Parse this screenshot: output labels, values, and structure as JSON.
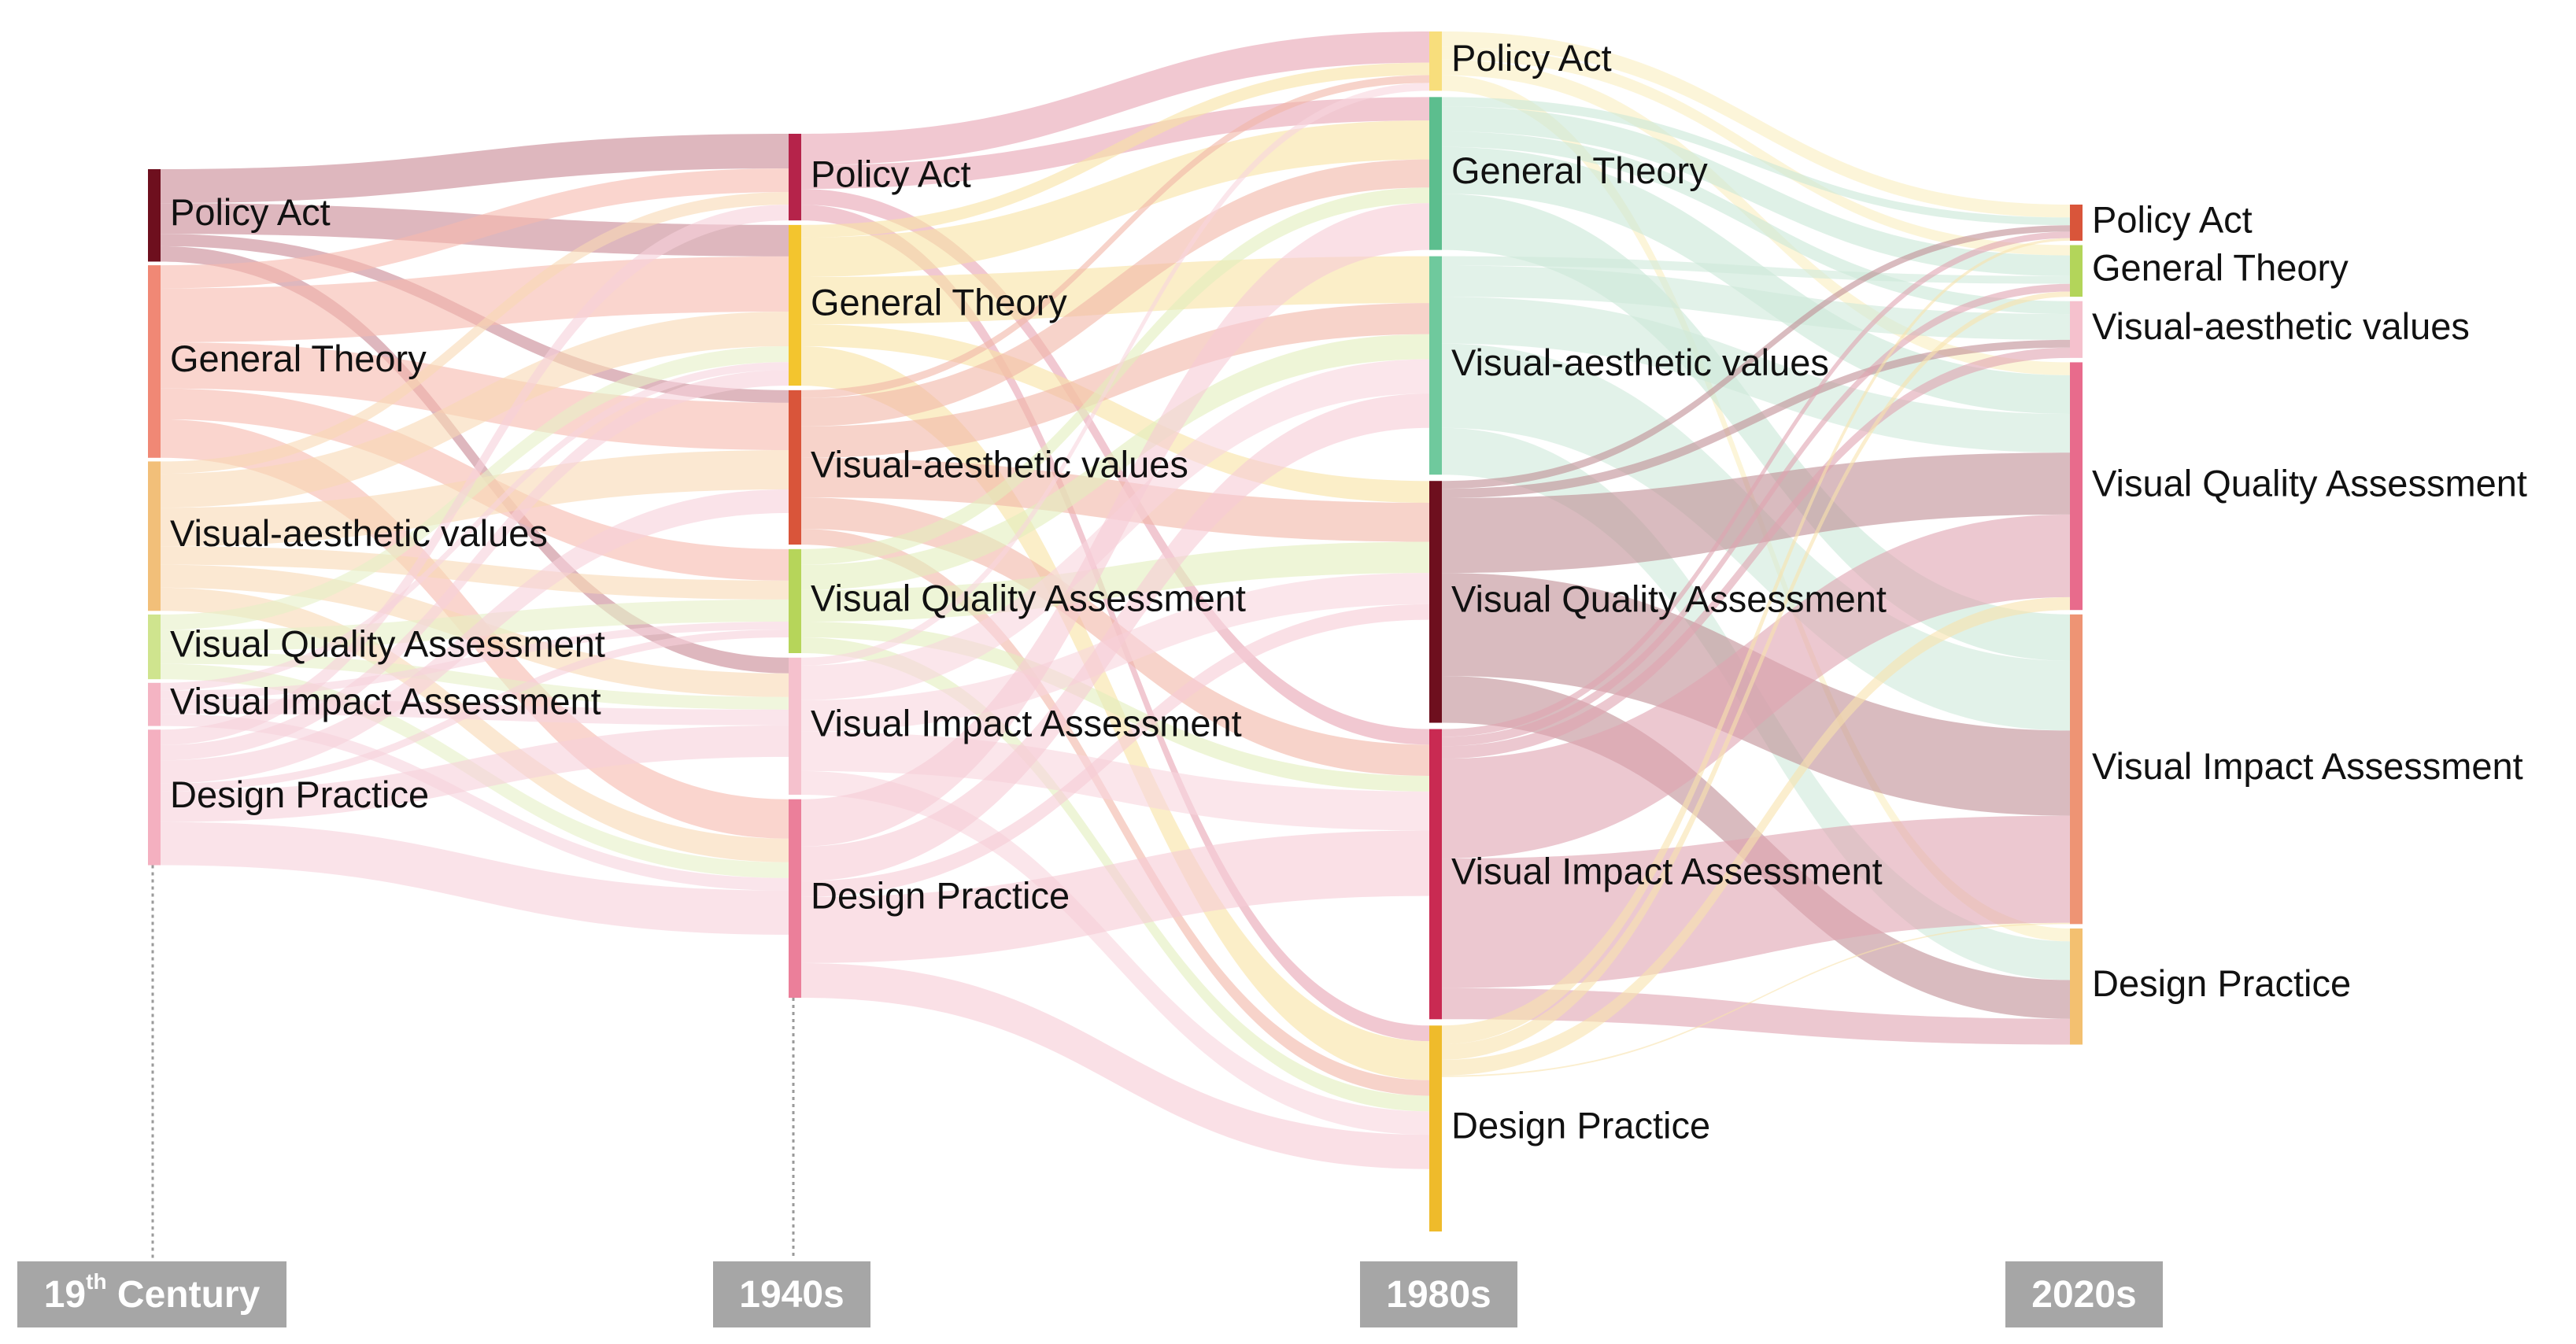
{
  "periods": [
    {
      "id": "p0",
      "main": "19",
      "sup": "th",
      "rest": " Century"
    },
    {
      "id": "p1",
      "main": "1940s",
      "sup": "",
      "rest": ""
    },
    {
      "id": "p2",
      "main": "1980s",
      "sup": "",
      "rest": ""
    },
    {
      "id": "p3",
      "main": "2020s",
      "sup": "",
      "rest": ""
    }
  ],
  "categories": [
    "Policy Act",
    "General Theory",
    "Visual-aesthetic values",
    "Visual Quality Assessment",
    "Visual Impact Assessment",
    "Design Practice"
  ],
  "columns": [
    {
      "period": "19th Century",
      "nodes": [
        {
          "label": "Policy Act",
          "value": 60,
          "color": "#6e0f1e"
        },
        {
          "label": "General Theory",
          "value": 125,
          "color": "#f08875"
        },
        {
          "label": "Visual-aesthetic values",
          "value": 97,
          "color": "#f2bf79"
        },
        {
          "label": "Visual Quality Assessment",
          "value": 42,
          "color": "#cfe48e"
        },
        {
          "label": "Visual Impact Assessment",
          "value": 28,
          "color": "#f4b4c3"
        },
        {
          "label": "Design Practice",
          "value": 88,
          "color": "#f4b0c0"
        }
      ]
    },
    {
      "period": "1940s",
      "nodes": [
        {
          "label": "Policy Act",
          "value": 55,
          "color": "#b5234a"
        },
        {
          "label": "General Theory",
          "value": 102,
          "color": "#f3c52e"
        },
        {
          "label": "Visual-aesthetic values",
          "value": 98,
          "color": "#d9553a"
        },
        {
          "label": "Visual Quality Assessment",
          "value": 66,
          "color": "#b6d55a"
        },
        {
          "label": "Visual Impact Assessment",
          "value": 87,
          "color": "#f5c1cd"
        },
        {
          "label": "Design Practice",
          "value": 126,
          "color": "#eb7f9a"
        }
      ]
    },
    {
      "period": "1980s",
      "nodes": [
        {
          "label": "Policy Act",
          "value": 38,
          "color": "#f8de7c"
        },
        {
          "label": "General Theory",
          "value": 98,
          "color": "#5cbe8e"
        },
        {
          "label": "Visual-aesthetic values",
          "value": 140,
          "color": "#6fc99d"
        },
        {
          "label": "Visual Quality Assessment",
          "value": 155,
          "color": "#6e0f1e"
        },
        {
          "label": "Visual Impact Assessment",
          "value": 186,
          "color": "#c92a52"
        },
        {
          "label": "Design Practice",
          "value": 132,
          "color": "#efbb2b"
        }
      ]
    },
    {
      "period": "2020s",
      "nodes": [
        {
          "label": "Policy Act",
          "value": 28,
          "color": "#d9553a"
        },
        {
          "label": "General Theory",
          "value": 40,
          "color": "#b3d55a"
        },
        {
          "label": "Visual-aesthetic values",
          "value": 44,
          "color": "#f5c1cd"
        },
        {
          "label": "Visual Quality Assessment",
          "value": 192,
          "color": "#e86b8c"
        },
        {
          "label": "Visual Impact Assessment",
          "value": 240,
          "color": "#ee9474"
        },
        {
          "label": "Design Practice",
          "value": 90,
          "color": "#f3c070"
        }
      ]
    }
  ],
  "flows": [
    [
      {
        "from": 0,
        "to": 0,
        "value": 22,
        "color": "#c88792"
      },
      {
        "from": 0,
        "to": 1,
        "value": 20,
        "color": "#c88792"
      },
      {
        "from": 0,
        "to": 2,
        "value": 8,
        "color": "#c88792"
      },
      {
        "from": 0,
        "to": 4,
        "value": 10,
        "color": "#c88792"
      },
      {
        "from": 1,
        "to": 0,
        "value": 15,
        "color": "#f6b9ad"
      },
      {
        "from": 1,
        "to": 1,
        "value": 35,
        "color": "#f6b9ad"
      },
      {
        "from": 1,
        "to": 2,
        "value": 30,
        "color": "#f6b9ad"
      },
      {
        "from": 1,
        "to": 3,
        "value": 20,
        "color": "#f6b9ad"
      },
      {
        "from": 1,
        "to": 5,
        "value": 25,
        "color": "#f6b9ad"
      },
      {
        "from": 2,
        "to": 0,
        "value": 8,
        "color": "#f8d9b4"
      },
      {
        "from": 2,
        "to": 1,
        "value": 22,
        "color": "#f8d9b4"
      },
      {
        "from": 2,
        "to": 2,
        "value": 25,
        "color": "#f8d9b4"
      },
      {
        "from": 2,
        "to": 3,
        "value": 12,
        "color": "#f8d9b4"
      },
      {
        "from": 2,
        "to": 4,
        "value": 15,
        "color": "#f8d9b4"
      },
      {
        "from": 2,
        "to": 5,
        "value": 15,
        "color": "#f8d9b4"
      },
      {
        "from": 3,
        "to": 1,
        "value": 10,
        "color": "#e6f0c6"
      },
      {
        "from": 3,
        "to": 3,
        "value": 14,
        "color": "#e6f0c6"
      },
      {
        "from": 3,
        "to": 4,
        "value": 8,
        "color": "#e6f0c6"
      },
      {
        "from": 3,
        "to": 5,
        "value": 10,
        "color": "#e6f0c6"
      },
      {
        "from": 4,
        "to": 1,
        "value": 5,
        "color": "#f7d4dd"
      },
      {
        "from": 4,
        "to": 3,
        "value": 5,
        "color": "#f7d4dd"
      },
      {
        "from": 4,
        "to": 4,
        "value": 10,
        "color": "#f7d4dd"
      },
      {
        "from": 4,
        "to": 5,
        "value": 8,
        "color": "#f7d4dd"
      },
      {
        "from": 5,
        "to": 0,
        "value": 10,
        "color": "#f7d0da"
      },
      {
        "from": 5,
        "to": 1,
        "value": 10,
        "color": "#f7d0da"
      },
      {
        "from": 5,
        "to": 2,
        "value": 15,
        "color": "#f7d0da"
      },
      {
        "from": 5,
        "to": 3,
        "value": 5,
        "color": "#f7d0da"
      },
      {
        "from": 5,
        "to": 4,
        "value": 20,
        "color": "#f7d0da"
      },
      {
        "from": 5,
        "to": 5,
        "value": 28,
        "color": "#f7d0da"
      }
    ],
    [
      {
        "from": 0,
        "to": 0,
        "value": 20,
        "color": "#e8a3b2"
      },
      {
        "from": 0,
        "to": 1,
        "value": 15,
        "color": "#e8a3b2"
      },
      {
        "from": 0,
        "to": 4,
        "value": 10,
        "color": "#e8a3b2"
      },
      {
        "from": 0,
        "to": 5,
        "value": 10,
        "color": "#e8a3b2"
      },
      {
        "from": 1,
        "to": 0,
        "value": 8,
        "color": "#f8e3a3"
      },
      {
        "from": 1,
        "to": 1,
        "value": 25,
        "color": "#f8e3a3"
      },
      {
        "from": 1,
        "to": 2,
        "value": 30,
        "color": "#f8e3a3"
      },
      {
        "from": 1,
        "to": 3,
        "value": 14,
        "color": "#f8e3a3"
      },
      {
        "from": 1,
        "to": 5,
        "value": 25,
        "color": "#f8e3a3"
      },
      {
        "from": 2,
        "to": 0,
        "value": 5,
        "color": "#f2b6a6"
      },
      {
        "from": 2,
        "to": 1,
        "value": 18,
        "color": "#f2b6a6"
      },
      {
        "from": 2,
        "to": 2,
        "value": 20,
        "color": "#f2b6a6"
      },
      {
        "from": 2,
        "to": 3,
        "value": 25,
        "color": "#f2b6a6"
      },
      {
        "from": 2,
        "to": 4,
        "value": 20,
        "color": "#f2b6a6"
      },
      {
        "from": 2,
        "to": 5,
        "value": 10,
        "color": "#f2b6a6"
      },
      {
        "from": 3,
        "to": 1,
        "value": 10,
        "color": "#e3efbd"
      },
      {
        "from": 3,
        "to": 2,
        "value": 16,
        "color": "#e3efbd"
      },
      {
        "from": 3,
        "to": 3,
        "value": 20,
        "color": "#e3efbd"
      },
      {
        "from": 3,
        "to": 4,
        "value": 10,
        "color": "#e3efbd"
      },
      {
        "from": 3,
        "to": 5,
        "value": 10,
        "color": "#e3efbd"
      },
      {
        "from": 4,
        "to": 0,
        "value": 5,
        "color": "#f8d6de"
      },
      {
        "from": 4,
        "to": 2,
        "value": 22,
        "color": "#f8d6de"
      },
      {
        "from": 4,
        "to": 3,
        "value": 20,
        "color": "#f8d6de"
      },
      {
        "from": 4,
        "to": 4,
        "value": 25,
        "color": "#f8d6de"
      },
      {
        "from": 4,
        "to": 5,
        "value": 15,
        "color": "#f8d6de"
      },
      {
        "from": 5,
        "to": 1,
        "value": 30,
        "color": "#f6ccd6"
      },
      {
        "from": 5,
        "to": 2,
        "value": 22,
        "color": "#f6ccd6"
      },
      {
        "from": 5,
        "to": 3,
        "value": 10,
        "color": "#f6ccd6"
      },
      {
        "from": 5,
        "to": 4,
        "value": 42,
        "color": "#f6ccd6"
      },
      {
        "from": 5,
        "to": 5,
        "value": 22,
        "color": "#f6ccd6"
      }
    ],
    [
      {
        "from": 0,
        "to": 0,
        "value": 10,
        "color": "#faefc0"
      },
      {
        "from": 0,
        "to": 1,
        "value": 8,
        "color": "#faefc0"
      },
      {
        "from": 0,
        "to": 3,
        "value": 10,
        "color": "#faefc0"
      },
      {
        "from": 0,
        "to": 5,
        "value": 10,
        "color": "#faefc0"
      },
      {
        "from": 1,
        "to": 0,
        "value": 6,
        "color": "#c9e8d7"
      },
      {
        "from": 1,
        "to": 1,
        "value": 16,
        "color": "#c9e8d7"
      },
      {
        "from": 1,
        "to": 2,
        "value": 10,
        "color": "#c9e8d7"
      },
      {
        "from": 1,
        "to": 3,
        "value": 30,
        "color": "#c9e8d7"
      },
      {
        "from": 1,
        "to": 4,
        "value": 36,
        "color": "#c9e8d7"
      },
      {
        "from": 2,
        "to": 1,
        "value": 6,
        "color": "#cfeadb"
      },
      {
        "from": 2,
        "to": 2,
        "value": 20,
        "color": "#cfeadb"
      },
      {
        "from": 2,
        "to": 3,
        "value": 30,
        "color": "#cfeadb"
      },
      {
        "from": 2,
        "to": 4,
        "value": 54,
        "color": "#cfeadb"
      },
      {
        "from": 2,
        "to": 5,
        "value": 30,
        "color": "#cfeadb"
      },
      {
        "from": 3,
        "to": 0,
        "value": 5,
        "color": "#c08e95"
      },
      {
        "from": 3,
        "to": 2,
        "value": 6,
        "color": "#c08e95"
      },
      {
        "from": 3,
        "to": 3,
        "value": 48,
        "color": "#c08e95"
      },
      {
        "from": 3,
        "to": 4,
        "value": 66,
        "color": "#c08e95"
      },
      {
        "from": 3,
        "to": 5,
        "value": 30,
        "color": "#c08e95"
      },
      {
        "from": 4,
        "to": 0,
        "value": 5,
        "color": "#e0a3b1"
      },
      {
        "from": 4,
        "to": 1,
        "value": 6,
        "color": "#e0a3b1"
      },
      {
        "from": 4,
        "to": 2,
        "value": 8,
        "color": "#e0a3b1"
      },
      {
        "from": 4,
        "to": 3,
        "value": 64,
        "color": "#e0a3b1"
      },
      {
        "from": 4,
        "to": 4,
        "value": 83,
        "color": "#e0a3b1"
      },
      {
        "from": 4,
        "to": 5,
        "value": 20,
        "color": "#e0a3b1"
      },
      {
        "from": 5,
        "to": 0,
        "value": 12,
        "color": "#f8e3ad"
      },
      {
        "from": 5,
        "to": 1,
        "value": 10,
        "color": "#f8e3ad"
      },
      {
        "from": 5,
        "to": 3,
        "value": 10,
        "color": "#f8e3ad"
      },
      {
        "from": 5,
        "to": 4,
        "value": 1,
        "color": "#f8e3ad"
      }
    ]
  ]
}
